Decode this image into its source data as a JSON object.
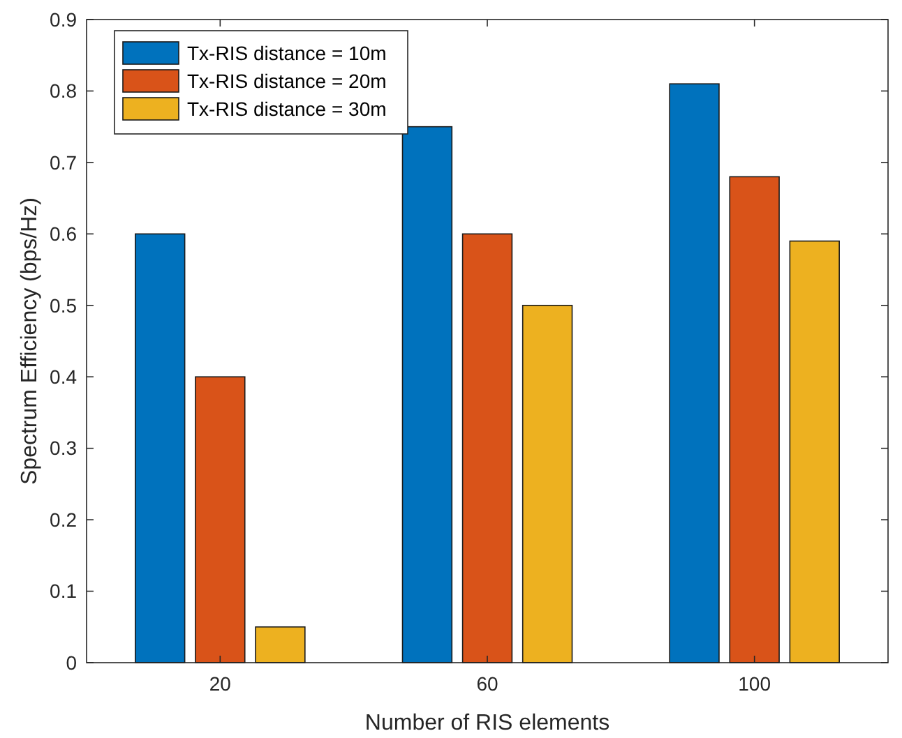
{
  "chart_data": {
    "type": "bar",
    "xlabel": "Number of RIS elements",
    "ylabel": "Spectrum Efficiency (bps/Hz)",
    "categories": [
      "20",
      "60",
      "100"
    ],
    "series": [
      {
        "name": "Tx-RIS distance = 10m",
        "color": "#0072bd",
        "values": [
          0.6,
          0.75,
          0.81
        ]
      },
      {
        "name": "Tx-RIS distance = 20m",
        "color": "#d95319",
        "values": [
          0.4,
          0.6,
          0.68
        ]
      },
      {
        "name": "Tx-RIS distance = 30m",
        "color": "#edb120",
        "values": [
          0.05,
          0.5,
          0.59
        ]
      }
    ],
    "ylim": [
      0,
      0.9
    ],
    "yticks": [
      0,
      0.1,
      0.2,
      0.3,
      0.4,
      0.5,
      0.6,
      0.7,
      0.8,
      0.9
    ],
    "legend": "top left"
  }
}
